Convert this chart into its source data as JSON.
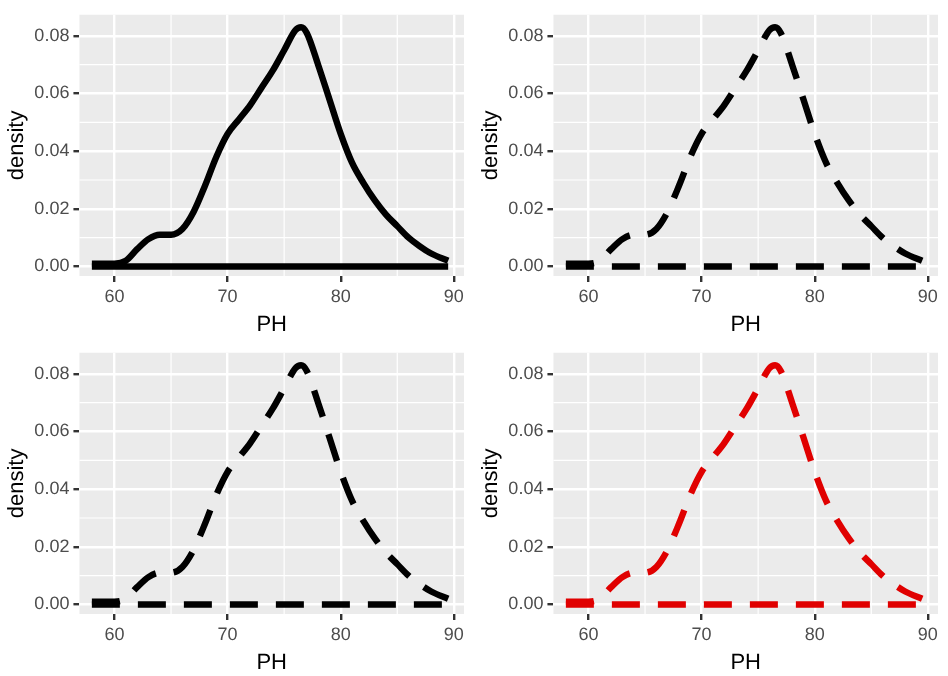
{
  "chart_data": [
    {
      "type": "line",
      "xlabel": "PH",
      "ylabel": "density",
      "xlim": [
        56.9,
        90.9
      ],
      "ylim": [
        -0.0033,
        0.0873
      ],
      "xticks": [
        60,
        70,
        80,
        90
      ],
      "yticks": [
        {
          "value": 0,
          "label": "0.00"
        },
        {
          "value": 0.02,
          "label": "0.02"
        },
        {
          "value": 0.04,
          "label": "0.04"
        },
        {
          "value": 0.06,
          "label": "0.06"
        },
        {
          "value": 0.08,
          "label": "0.08"
        }
      ],
      "grid": true,
      "legend": false,
      "marker": "none",
      "series": [
        {
          "color": "#000000",
          "line_style": "solid",
          "x": [
            58,
            60,
            61,
            62,
            63,
            64,
            65,
            66,
            67,
            68,
            69,
            70,
            71,
            72,
            73,
            74,
            75,
            76,
            76.5,
            77,
            78,
            79,
            80,
            81,
            82,
            83,
            84,
            85,
            86,
            87,
            88,
            89.5
          ],
          "values": [
            0.001,
            0.001,
            0.002,
            0.006,
            0.0095,
            0.011,
            0.011,
            0.013,
            0.019,
            0.028,
            0.038,
            0.046,
            0.051,
            0.056,
            0.062,
            0.068,
            0.075,
            0.082,
            0.083,
            0.081,
            0.07,
            0.058,
            0.046,
            0.036,
            0.029,
            0.023,
            0.018,
            0.014,
            0.01,
            0.007,
            0.0045,
            0.002
          ]
        },
        {
          "color": "#000000",
          "line_style": "solid",
          "x": [
            58,
            89.5
          ],
          "values": [
            0,
            0
          ]
        }
      ]
    },
    {
      "type": "line",
      "xlabel": "PH",
      "ylabel": "density",
      "xlim": [
        56.9,
        90.9
      ],
      "ylim": [
        -0.0033,
        0.0873
      ],
      "xticks": [
        60,
        70,
        80,
        90
      ],
      "yticks": [
        {
          "value": 0,
          "label": "0.00"
        },
        {
          "value": 0.02,
          "label": "0.02"
        },
        {
          "value": 0.04,
          "label": "0.04"
        },
        {
          "value": 0.06,
          "label": "0.06"
        },
        {
          "value": 0.08,
          "label": "0.08"
        }
      ],
      "grid": true,
      "legend": false,
      "marker": "none",
      "series": [
        {
          "color": "#000000",
          "line_style": "dashed",
          "x": [
            58,
            60,
            61,
            62,
            63,
            64,
            65,
            66,
            67,
            68,
            69,
            70,
            71,
            72,
            73,
            74,
            75,
            76,
            76.5,
            77,
            78,
            79,
            80,
            81,
            82,
            83,
            84,
            85,
            86,
            87,
            88,
            89.5
          ],
          "values": [
            0.001,
            0.001,
            0.002,
            0.006,
            0.0095,
            0.011,
            0.011,
            0.013,
            0.019,
            0.028,
            0.038,
            0.046,
            0.051,
            0.056,
            0.062,
            0.068,
            0.075,
            0.082,
            0.083,
            0.081,
            0.07,
            0.058,
            0.046,
            0.036,
            0.029,
            0.023,
            0.018,
            0.014,
            0.01,
            0.007,
            0.0045,
            0.002
          ]
        },
        {
          "color": "#000000",
          "line_style": "dashed",
          "x": [
            58,
            89.5
          ],
          "values": [
            0,
            0
          ]
        }
      ]
    },
    {
      "type": "line",
      "xlabel": "PH",
      "ylabel": "density",
      "xlim": [
        56.9,
        90.9
      ],
      "ylim": [
        -0.0033,
        0.0873
      ],
      "xticks": [
        60,
        70,
        80,
        90
      ],
      "yticks": [
        {
          "value": 0,
          "label": "0.00"
        },
        {
          "value": 0.02,
          "label": "0.02"
        },
        {
          "value": 0.04,
          "label": "0.04"
        },
        {
          "value": 0.06,
          "label": "0.06"
        },
        {
          "value": 0.08,
          "label": "0.08"
        }
      ],
      "grid": true,
      "legend": false,
      "marker": "none",
      "series": [
        {
          "color": "#000000",
          "line_style": "dashed",
          "x": [
            58,
            60,
            61,
            62,
            63,
            64,
            65,
            66,
            67,
            68,
            69,
            70,
            71,
            72,
            73,
            74,
            75,
            76,
            76.5,
            77,
            78,
            79,
            80,
            81,
            82,
            83,
            84,
            85,
            86,
            87,
            88,
            89.5
          ],
          "values": [
            0.001,
            0.001,
            0.002,
            0.006,
            0.0095,
            0.011,
            0.011,
            0.013,
            0.019,
            0.028,
            0.038,
            0.046,
            0.051,
            0.056,
            0.062,
            0.068,
            0.075,
            0.082,
            0.083,
            0.081,
            0.07,
            0.058,
            0.046,
            0.036,
            0.029,
            0.023,
            0.018,
            0.014,
            0.01,
            0.007,
            0.0045,
            0.002
          ]
        },
        {
          "color": "#000000",
          "line_style": "dashed",
          "x": [
            58,
            89.5
          ],
          "values": [
            0,
            0
          ]
        }
      ]
    },
    {
      "type": "line",
      "xlabel": "PH",
      "ylabel": "density",
      "xlim": [
        56.9,
        90.9
      ],
      "ylim": [
        -0.0033,
        0.0873
      ],
      "xticks": [
        60,
        70,
        80,
        90
      ],
      "yticks": [
        {
          "value": 0,
          "label": "0.00"
        },
        {
          "value": 0.02,
          "label": "0.02"
        },
        {
          "value": 0.04,
          "label": "0.04"
        },
        {
          "value": 0.06,
          "label": "0.06"
        },
        {
          "value": 0.08,
          "label": "0.08"
        }
      ],
      "grid": true,
      "legend": false,
      "marker": "none",
      "series": [
        {
          "color": "#e00000",
          "line_style": "dashed",
          "x": [
            58,
            60,
            61,
            62,
            63,
            64,
            65,
            66,
            67,
            68,
            69,
            70,
            71,
            72,
            73,
            74,
            75,
            76,
            76.5,
            77,
            78,
            79,
            80,
            81,
            82,
            83,
            84,
            85,
            86,
            87,
            88,
            89.5
          ],
          "values": [
            0.001,
            0.001,
            0.002,
            0.006,
            0.0095,
            0.011,
            0.011,
            0.013,
            0.019,
            0.028,
            0.038,
            0.046,
            0.051,
            0.056,
            0.062,
            0.068,
            0.075,
            0.082,
            0.083,
            0.081,
            0.07,
            0.058,
            0.046,
            0.036,
            0.029,
            0.023,
            0.018,
            0.014,
            0.01,
            0.007,
            0.0045,
            0.002
          ]
        },
        {
          "color": "#e00000",
          "line_style": "dashed",
          "x": [
            58,
            89.5
          ],
          "values": [
            0,
            0
          ]
        }
      ]
    }
  ]
}
